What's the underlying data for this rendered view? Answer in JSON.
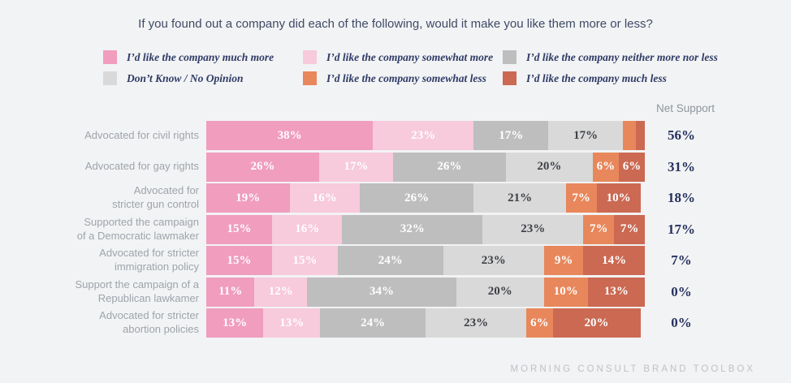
{
  "title": "If you found out a company did each of the following, would it make you like them more or less?",
  "net_support_header": "Net Support",
  "footer": "MORNING CONSULT BRAND TOOLBOX",
  "colors": {
    "background": "#F2F3F4",
    "much_more": "#F09DBE",
    "somewhat_more": "#F7CADC",
    "neither": "#BDBEBD",
    "dont_know": "#D8D9D8",
    "somewhat_less": "#E8875B",
    "much_less": "#CB6952",
    "net_value_text": "#25305E",
    "legend_text": "#2F3B66",
    "row_label_text": "#9EA4AC"
  },
  "legend": [
    {
      "label": "I’d like the company much more",
      "color": "#F09DBE"
    },
    {
      "label": "I’d like the company somewhat more",
      "color": "#F7CADC"
    },
    {
      "label": "I’d like the company neither more nor less",
      "color": "#BDBEBD"
    },
    {
      "label": "Don’t Know / No Opinion",
      "color": "#D8D9D8"
    },
    {
      "label": "I’d like the company somewhat less",
      "color": "#E8875B"
    },
    {
      "label": "I’d like the company much less",
      "color": "#CB6952"
    }
  ],
  "chart_data": {
    "type": "bar",
    "stacked": true,
    "orientation": "horizontal",
    "xlim": [
      0,
      100
    ],
    "legend_position": "top",
    "categories": [
      "Advocated for civil rights",
      "Advocated for gay rights",
      "Advocated for\nstricter gun control",
      "Supported the campaign\nof a Democratic lawmaker",
      "Advocated for stricter\nimmigration policy",
      "Support the campaign of a\nRepublican lawkamer",
      "Advocated for stricter\nabortion policies"
    ],
    "series": [
      {
        "name": "I’d like the company much more",
        "color": "#F09DBE",
        "text_color": "#FFFFFF",
        "values": [
          38,
          26,
          19,
          15,
          15,
          11,
          13
        ],
        "labels": [
          "38%",
          "26%",
          "19%",
          "15%",
          "15%",
          "11%",
          "13%"
        ]
      },
      {
        "name": "I’d like the company somewhat more",
        "color": "#F7CADC",
        "text_color": "#FFFFFF",
        "values": [
          23,
          17,
          16,
          16,
          15,
          12,
          13
        ],
        "labels": [
          "23%",
          "17%",
          "16%",
          "16%",
          "15%",
          "12%",
          "13%"
        ]
      },
      {
        "name": "I’d like the company neither more nor less",
        "color": "#BDBEBD",
        "text_color": "#FFFFFF",
        "values": [
          17,
          26,
          26,
          32,
          24,
          34,
          24
        ],
        "labels": [
          "17%",
          "26%",
          "26%",
          "32%",
          "24%",
          "34%",
          "24%"
        ]
      },
      {
        "name": "Don’t Know / No Opinion",
        "color": "#D8D9D8",
        "text_color": "#3E4148",
        "values": [
          17,
          20,
          21,
          23,
          23,
          20,
          23
        ],
        "labels": [
          "17%",
          "20%",
          "21%",
          "23%",
          "23%",
          "20%",
          "23%"
        ]
      },
      {
        "name": "I’d like the company somewhat less",
        "color": "#E8875B",
        "text_color": "#FFFFFF",
        "values": [
          3,
          6,
          7,
          7,
          9,
          10,
          6
        ],
        "labels": [
          "",
          "6%",
          "7%",
          "7%",
          "9%",
          "10%",
          "6%"
        ]
      },
      {
        "name": "I’d like the company much less",
        "color": "#CB6952",
        "text_color": "#FFFFFF",
        "values": [
          2,
          6,
          10,
          7,
          14,
          13,
          20
        ],
        "labels": [
          "",
          "6%",
          "10%",
          "7%",
          "14%",
          "13%",
          "20%"
        ]
      }
    ],
    "net_support": [
      "56%",
      "31%",
      "18%",
      "17%",
      "7%",
      "0%",
      "0%"
    ]
  }
}
